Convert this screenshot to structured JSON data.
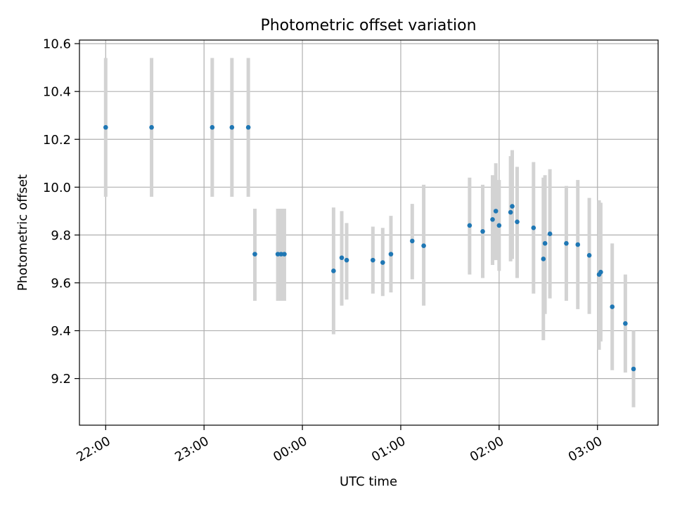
{
  "chart_data": {
    "type": "scatter",
    "title": "Photometric offset variation",
    "xlabel": "UTC time",
    "ylabel": "Photometric offset",
    "grid": true,
    "colors": {
      "marker": "#1f77b4",
      "errorbar": "#d3d3d3",
      "grid": "#b0b0b0"
    },
    "xlim": [
      "21:44",
      "03:37"
    ],
    "ylim": [
      9.005,
      10.615
    ],
    "xticks": [
      "22:00",
      "23:00",
      "00:00",
      "01:00",
      "02:00",
      "03:00"
    ],
    "yticks": [
      "9.2",
      "9.4",
      "9.6",
      "9.8",
      "10.0",
      "10.2",
      "10.4",
      "10.6"
    ],
    "series": [
      {
        "points": [
          {
            "x": "22:00",
            "y": 10.25,
            "err": [
              9.96,
              10.54
            ]
          },
          {
            "x": "22:28",
            "y": 10.25,
            "err": [
              9.96,
              10.54
            ]
          },
          {
            "x": "23:05",
            "y": 10.25,
            "err": [
              9.96,
              10.54
            ]
          },
          {
            "x": "23:17",
            "y": 10.25,
            "err": [
              9.96,
              10.54
            ]
          },
          {
            "x": "23:27",
            "y": 10.25,
            "err": [
              9.96,
              10.54
            ]
          },
          {
            "x": "23:31",
            "y": 9.72,
            "err": [
              9.525,
              9.91
            ]
          },
          {
            "x": "23:45",
            "y": 9.72,
            "err": [
              9.525,
              9.91
            ]
          },
          {
            "x": "23:47",
            "y": 9.72,
            "err": [
              9.525,
              9.91
            ]
          },
          {
            "x": "23:49",
            "y": 9.72,
            "err": [
              9.525,
              9.91
            ]
          },
          {
            "x": "00:19",
            "y": 9.65,
            "err": [
              9.385,
              9.915
            ]
          },
          {
            "x": "00:24",
            "y": 9.705,
            "err": [
              9.505,
              9.9
            ]
          },
          {
            "x": "00:27",
            "y": 9.695,
            "err": [
              9.53,
              9.85
            ]
          },
          {
            "x": "00:43",
            "y": 9.695,
            "err": [
              9.555,
              9.835
            ]
          },
          {
            "x": "00:49",
            "y": 9.685,
            "err": [
              9.545,
              9.83
            ]
          },
          {
            "x": "00:54",
            "y": 9.72,
            "err": [
              9.56,
              9.88
            ]
          },
          {
            "x": "01:07",
            "y": 9.775,
            "err": [
              9.615,
              9.93
            ]
          },
          {
            "x": "01:14",
            "y": 9.755,
            "err": [
              9.505,
              10.01
            ]
          },
          {
            "x": "01:42",
            "y": 9.84,
            "err": [
              9.635,
              10.04
            ]
          },
          {
            "x": "01:50",
            "y": 9.815,
            "err": [
              9.62,
              10.01
            ]
          },
          {
            "x": "01:56",
            "y": 9.865,
            "err": [
              9.675,
              10.05
            ]
          },
          {
            "x": "01:58",
            "y": 9.9,
            "err": [
              9.695,
              10.1
            ]
          },
          {
            "x": "02:00",
            "y": 9.84,
            "err": [
              9.65,
              10.03
            ]
          },
          {
            "x": "02:07",
            "y": 9.895,
            "err": [
              9.69,
              10.13
            ]
          },
          {
            "x": "02:08",
            "y": 9.92,
            "err": [
              9.7,
              10.155
            ]
          },
          {
            "x": "02:11",
            "y": 9.855,
            "err": [
              9.62,
              10.085
            ]
          },
          {
            "x": "02:21",
            "y": 9.83,
            "err": [
              9.555,
              10.105
            ]
          },
          {
            "x": "02:27",
            "y": 9.7,
            "err": [
              9.36,
              10.04
            ]
          },
          {
            "x": "02:28",
            "y": 9.765,
            "err": [
              9.47,
              10.05
            ]
          },
          {
            "x": "02:31",
            "y": 9.805,
            "err": [
              9.535,
              10.075
            ]
          },
          {
            "x": "02:41",
            "y": 9.765,
            "err": [
              9.525,
              10.005
            ]
          },
          {
            "x": "02:48",
            "y": 9.76,
            "err": [
              9.49,
              10.03
            ]
          },
          {
            "x": "02:55",
            "y": 9.715,
            "err": [
              9.47,
              9.955
            ]
          },
          {
            "x": "03:01",
            "y": 9.635,
            "err": [
              9.32,
              9.945
            ]
          },
          {
            "x": "03:02",
            "y": 9.645,
            "err": [
              9.355,
              9.935
            ]
          },
          {
            "x": "03:09",
            "y": 9.5,
            "err": [
              9.235,
              9.765
            ]
          },
          {
            "x": "03:17",
            "y": 9.43,
            "err": [
              9.225,
              9.635
            ]
          },
          {
            "x": "03:22",
            "y": 9.24,
            "err": [
              9.08,
              9.4
            ]
          }
        ]
      }
    ]
  }
}
